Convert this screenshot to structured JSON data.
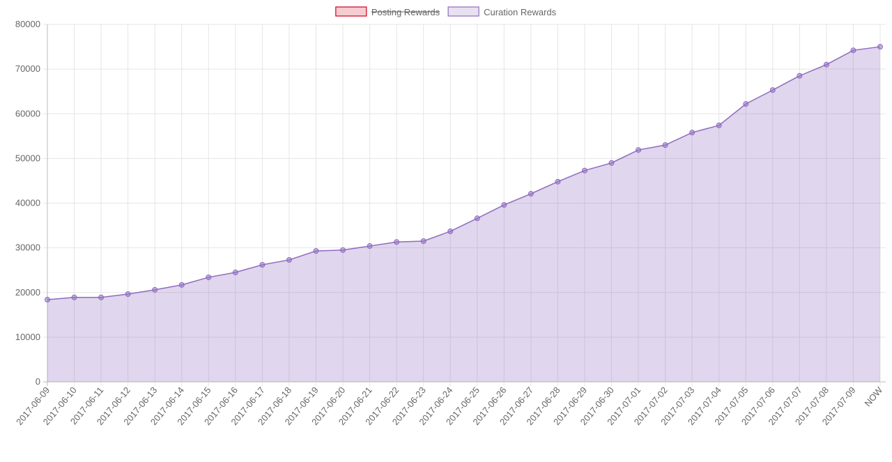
{
  "chart_data": {
    "type": "line",
    "categories": [
      "2017-06-09",
      "2017-06-10",
      "2017-06-11",
      "2017-06-12",
      "2017-06-13",
      "2017-06-14",
      "2017-06-15",
      "2017-06-16",
      "2017-06-17",
      "2017-06-18",
      "2017-06-19",
      "2017-06-20",
      "2017-06-21",
      "2017-06-22",
      "2017-06-23",
      "2017-06-24",
      "2017-06-25",
      "2017-06-26",
      "2017-06-27",
      "2017-06-28",
      "2017-06-29",
      "2017-06-30",
      "2017-07-01",
      "2017-07-02",
      "2017-07-03",
      "2017-07-04",
      "2017-07-05",
      "2017-07-06",
      "2017-07-07",
      "2017-07-08",
      "2017-07-09",
      "NOW"
    ],
    "series": [
      {
        "name": "Posting Rewards",
        "color": "#d0021b",
        "hidden": true
      },
      {
        "name": "Curation Rewards",
        "color": "#8e6bbf",
        "fill": true,
        "values": [
          18400,
          18900,
          18900,
          19650,
          20600,
          21700,
          23400,
          24500,
          26200,
          27300,
          29300,
          29500,
          30400,
          31300,
          31500,
          33700,
          36600,
          39600,
          42100,
          44800,
          47300,
          49000,
          51900,
          53000,
          55800,
          57400,
          62200,
          65300,
          68500,
          71000,
          74200,
          75000
        ]
      }
    ],
    "ylim": [
      0,
      80000
    ],
    "yticks": [
      0,
      10000,
      20000,
      30000,
      40000,
      50000,
      60000,
      70000,
      80000
    ],
    "grid": true,
    "legend": "top"
  }
}
